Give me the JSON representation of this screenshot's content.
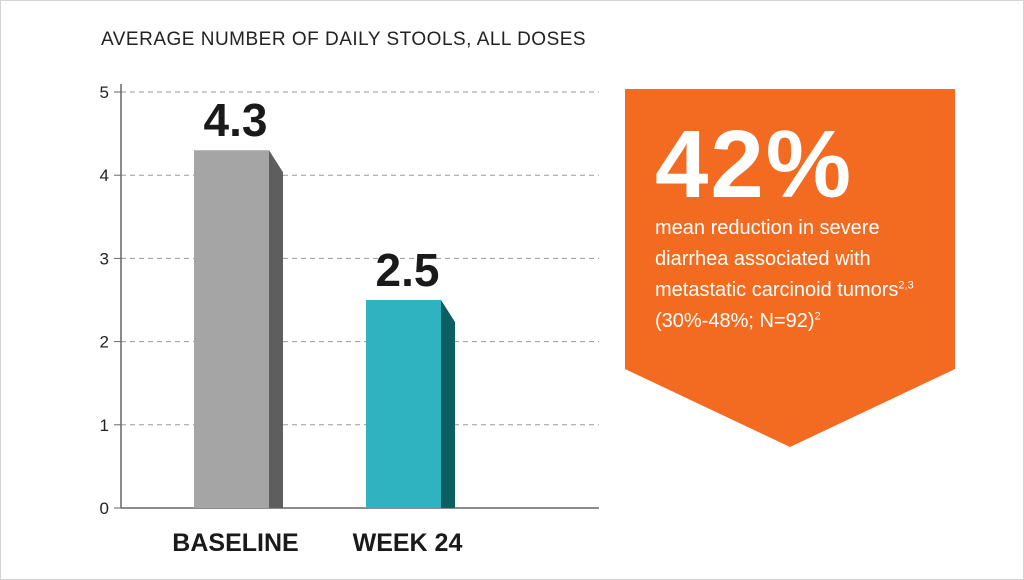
{
  "chart_data": {
    "type": "bar",
    "title": "AVERAGE NUMBER OF DAILY STOOLS, ALL DOSES",
    "categories": [
      "BASELINE",
      "WEEK 24"
    ],
    "values": [
      4.3,
      2.5
    ],
    "data_labels": [
      "4.3",
      "2.5"
    ],
    "yticks": [
      "0",
      "1",
      "2",
      "3",
      "4",
      "5"
    ],
    "ylim": [
      0,
      5
    ],
    "grid": "dashed horizontal",
    "colors": [
      {
        "face": "#a6a5a5",
        "side": "#5f5e5e"
      },
      {
        "face": "#2fb3c0",
        "side": "#0b5f63"
      }
    ]
  },
  "callout": {
    "headline": "42%",
    "description": "mean reduction in severe diarrhea associated with metastatic carcinoid tumors",
    "description_refs": "2,3",
    "note": "(30%-48%; N=92)",
    "note_ref": "2",
    "color": "#f26b21"
  }
}
